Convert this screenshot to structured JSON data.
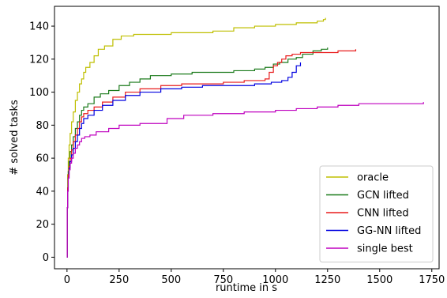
{
  "chart_data": {
    "type": "line",
    "step": true,
    "xlabel": "runtime in s",
    "ylabel": "# solved tasks",
    "xlim": [
      -60,
      1785
    ],
    "ylim": [
      -7,
      152
    ],
    "xticks": [
      0,
      250,
      500,
      750,
      1000,
      1250,
      1500,
      1750
    ],
    "yticks": [
      0,
      20,
      40,
      60,
      80,
      100,
      120,
      140
    ],
    "grid": false,
    "legend_position": "lower-right",
    "series": [
      {
        "name": "oracle",
        "color": "#bfbf00",
        "points": [
          [
            0,
            0
          ],
          [
            1,
            30
          ],
          [
            3,
            50
          ],
          [
            6,
            60
          ],
          [
            10,
            68
          ],
          [
            15,
            75
          ],
          [
            22,
            82
          ],
          [
            30,
            88
          ],
          [
            40,
            95
          ],
          [
            50,
            100
          ],
          [
            60,
            105
          ],
          [
            70,
            108
          ],
          [
            80,
            112
          ],
          [
            90,
            115
          ],
          [
            110,
            118
          ],
          [
            130,
            122
          ],
          [
            150,
            126
          ],
          [
            180,
            128
          ],
          [
            220,
            132
          ],
          [
            260,
            134
          ],
          [
            320,
            135
          ],
          [
            400,
            135
          ],
          [
            500,
            136
          ],
          [
            600,
            136
          ],
          [
            700,
            137
          ],
          [
            800,
            139
          ],
          [
            900,
            140
          ],
          [
            1000,
            141
          ],
          [
            1100,
            142
          ],
          [
            1200,
            143
          ],
          [
            1230,
            144
          ],
          [
            1240,
            145
          ]
        ]
      },
      {
        "name": "GCN lifted",
        "color": "#1a7a1a",
        "points": [
          [
            0,
            0
          ],
          [
            1,
            30
          ],
          [
            3,
            42
          ],
          [
            6,
            52
          ],
          [
            10,
            58
          ],
          [
            15,
            64
          ],
          [
            22,
            68
          ],
          [
            30,
            73
          ],
          [
            40,
            78
          ],
          [
            50,
            82
          ],
          [
            60,
            86
          ],
          [
            70,
            89
          ],
          [
            80,
            91
          ],
          [
            100,
            93
          ],
          [
            130,
            97
          ],
          [
            160,
            99
          ],
          [
            200,
            101
          ],
          [
            250,
            104
          ],
          [
            300,
            106
          ],
          [
            350,
            108
          ],
          [
            400,
            110
          ],
          [
            500,
            111
          ],
          [
            600,
            112
          ],
          [
            700,
            112
          ],
          [
            800,
            113
          ],
          [
            900,
            114
          ],
          [
            950,
            115
          ],
          [
            990,
            117
          ],
          [
            1020,
            118
          ],
          [
            1060,
            120
          ],
          [
            1100,
            121
          ],
          [
            1130,
            123
          ],
          [
            1180,
            125
          ],
          [
            1220,
            126
          ],
          [
            1250,
            127
          ]
        ]
      },
      {
        "name": "CNN lifted",
        "color": "#e81c1c",
        "points": [
          [
            0,
            0
          ],
          [
            1,
            30
          ],
          [
            3,
            42
          ],
          [
            6,
            50
          ],
          [
            10,
            55
          ],
          [
            15,
            60
          ],
          [
            22,
            65
          ],
          [
            30,
            70
          ],
          [
            40,
            74
          ],
          [
            50,
            78
          ],
          [
            60,
            82
          ],
          [
            70,
            85
          ],
          [
            80,
            87
          ],
          [
            100,
            89
          ],
          [
            130,
            91
          ],
          [
            170,
            94
          ],
          [
            220,
            97
          ],
          [
            280,
            100
          ],
          [
            350,
            102
          ],
          [
            450,
            104
          ],
          [
            550,
            105
          ],
          [
            650,
            105
          ],
          [
            750,
            106
          ],
          [
            850,
            107
          ],
          [
            950,
            108
          ],
          [
            970,
            112
          ],
          [
            990,
            116
          ],
          [
            1010,
            118
          ],
          [
            1030,
            120
          ],
          [
            1050,
            122
          ],
          [
            1080,
            123
          ],
          [
            1120,
            124
          ],
          [
            1200,
            124
          ],
          [
            1300,
            125
          ],
          [
            1385,
            126
          ]
        ]
      },
      {
        "name": "GG-NN lifted",
        "color": "#0000e0",
        "points": [
          [
            0,
            0
          ],
          [
            1,
            30
          ],
          [
            3,
            40
          ],
          [
            6,
            48
          ],
          [
            10,
            54
          ],
          [
            15,
            58
          ],
          [
            22,
            62
          ],
          [
            30,
            66
          ],
          [
            40,
            70
          ],
          [
            50,
            74
          ],
          [
            60,
            78
          ],
          [
            70,
            81
          ],
          [
            80,
            84
          ],
          [
            100,
            86
          ],
          [
            130,
            89
          ],
          [
            170,
            92
          ],
          [
            220,
            95
          ],
          [
            280,
            98
          ],
          [
            350,
            100
          ],
          [
            450,
            102
          ],
          [
            550,
            103
          ],
          [
            650,
            104
          ],
          [
            750,
            104
          ],
          [
            850,
            104
          ],
          [
            900,
            105
          ],
          [
            980,
            106
          ],
          [
            1030,
            107
          ],
          [
            1060,
            109
          ],
          [
            1080,
            112
          ],
          [
            1100,
            116
          ],
          [
            1120,
            118
          ]
        ]
      },
      {
        "name": "single best",
        "color": "#bf00bf",
        "points": [
          [
            0,
            0
          ],
          [
            1,
            30
          ],
          [
            3,
            40
          ],
          [
            6,
            48
          ],
          [
            10,
            53
          ],
          [
            15,
            57
          ],
          [
            22,
            60
          ],
          [
            30,
            63
          ],
          [
            40,
            66
          ],
          [
            50,
            68
          ],
          [
            60,
            70
          ],
          [
            70,
            72
          ],
          [
            85,
            73
          ],
          [
            110,
            74
          ],
          [
            140,
            76
          ],
          [
            200,
            78
          ],
          [
            250,
            80
          ],
          [
            350,
            81
          ],
          [
            480,
            84
          ],
          [
            560,
            86
          ],
          [
            700,
            87
          ],
          [
            850,
            88
          ],
          [
            1000,
            89
          ],
          [
            1100,
            90
          ],
          [
            1200,
            91
          ],
          [
            1300,
            92
          ],
          [
            1400,
            93
          ],
          [
            1500,
            93
          ],
          [
            1600,
            93
          ],
          [
            1710,
            94
          ]
        ]
      }
    ]
  }
}
